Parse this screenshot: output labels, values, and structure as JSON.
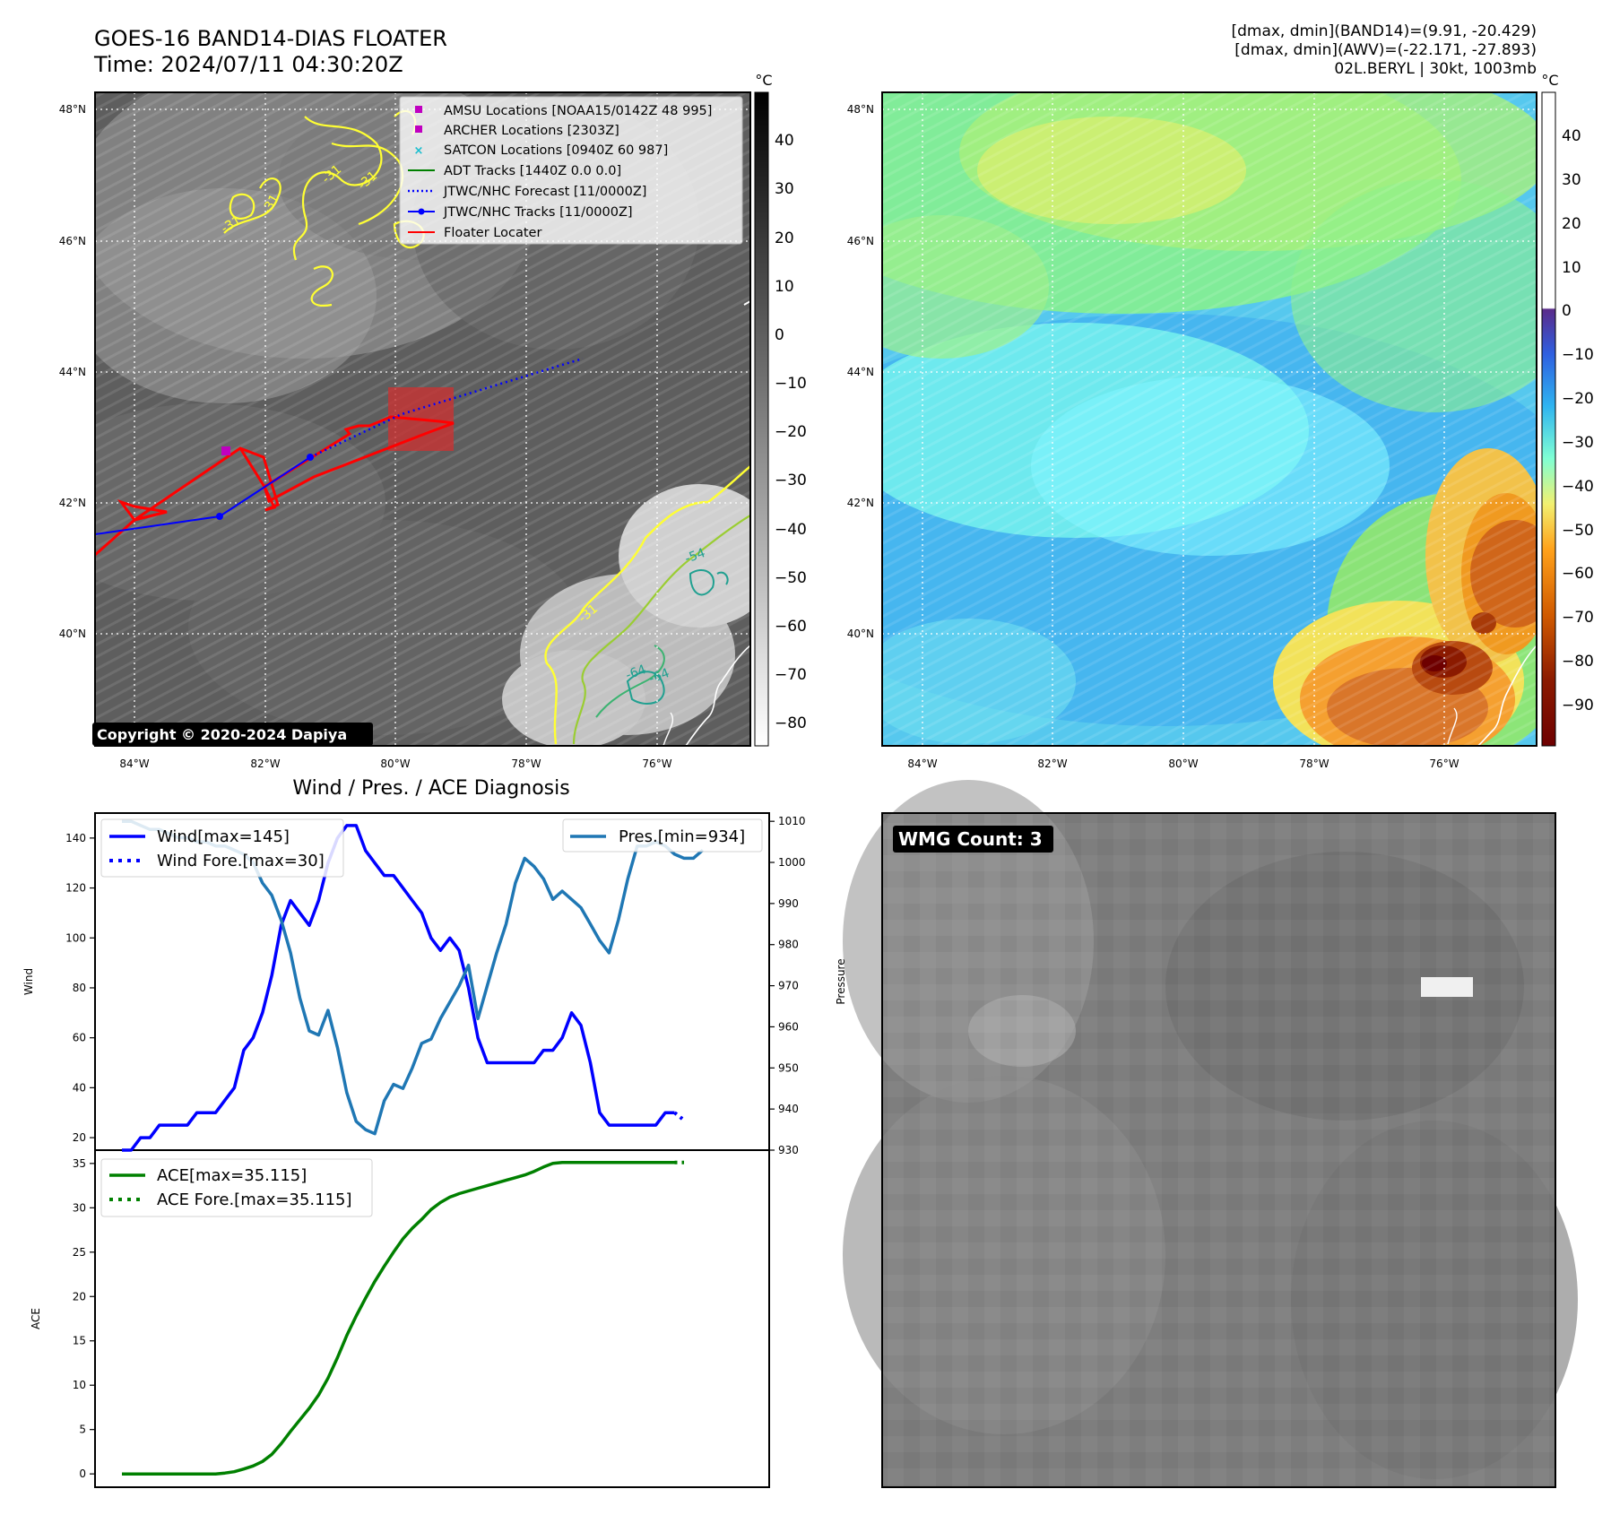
{
  "header": {
    "title_line1": "GOES-16 BAND14-DIAS FLOATER",
    "title_line2": "Time: 2024/07/11 04:30:20Z",
    "right_line1": "[dmax, dmin](BAND14)=(9.91, -20.429)",
    "right_line2": "[dmax, dmin](AWV)=(-22.171, -27.893)",
    "right_line3": "02L.BERYL | 30kt, 1003mb"
  },
  "map": {
    "lon_ticks": [
      "84°W",
      "82°W",
      "80°W",
      "78°W",
      "76°W"
    ],
    "lat_ticks": [
      "48°N",
      "46°N",
      "44°N",
      "42°N",
      "40°N"
    ],
    "copyright": "Copyright © 2020-2024 Dapiya",
    "contour_labels": [
      "-31",
      "-31",
      "-31",
      "-31",
      "-54",
      "-64",
      "-31",
      "-64"
    ],
    "legend": [
      {
        "label": "AMSU Locations [NOAA15/0142Z 48 995]",
        "color": "#c000c0",
        "kind": "square"
      },
      {
        "label": "ARCHER Locations [2303Z]",
        "color": "#c000c0",
        "kind": "square"
      },
      {
        "label": "SATCON Locations [0940Z 60 987]",
        "color": "#17becf",
        "kind": "x"
      },
      {
        "label": "ADT Tracks [1440Z 0.0 0.0]",
        "color": "#008000",
        "kind": "line"
      },
      {
        "label": "JTWC/NHC Forecast [11/0000Z]",
        "color": "#0000ff",
        "kind": "dotted"
      },
      {
        "label": "JTWC/NHC Tracks [11/0000Z]",
        "color": "#0000ff",
        "kind": "line-dot"
      },
      {
        "label": "Floater Locater",
        "color": "#ff0000",
        "kind": "line"
      }
    ]
  },
  "colorbar_left": {
    "unit": "°C",
    "ticks": [
      "40",
      "30",
      "20",
      "10",
      "0",
      "−10",
      "−20",
      "−30",
      "−40",
      "−50",
      "−60",
      "−70",
      "−80"
    ]
  },
  "colorbar_right": {
    "unit": "°C",
    "ticks": [
      "40",
      "30",
      "20",
      "10",
      "0",
      "−10",
      "−20",
      "−30",
      "−40",
      "−50",
      "−60",
      "−70",
      "−80",
      "−90"
    ]
  },
  "wmg": {
    "label": "WMG Count: 3"
  },
  "chart_data": [
    {
      "type": "line",
      "title": "Wind / Pres. / ACE Diagnosis",
      "ylabel": "Wind",
      "y2label": "Pressure",
      "ylim": [
        15,
        150
      ],
      "y2lim": [
        930,
        1012
      ],
      "yticks": [
        "140",
        "120",
        "100",
        "80",
        "60",
        "40",
        "20"
      ],
      "y2ticks": [
        "1010",
        "1000",
        "990",
        "980",
        "970",
        "960",
        "950",
        "940",
        "930"
      ],
      "series": [
        {
          "name": "Wind[max=145]",
          "color": "#0000ff",
          "axis": "left",
          "values": [
            15,
            15,
            20,
            20,
            25,
            25,
            25,
            25,
            30,
            30,
            30,
            35,
            40,
            55,
            60,
            70,
            85,
            105,
            115,
            110,
            105,
            115,
            130,
            140,
            145,
            145,
            135,
            130,
            125,
            125,
            120,
            115,
            110,
            100,
            95,
            100,
            95,
            80,
            60,
            50,
            50,
            50,
            50,
            50,
            50,
            55,
            55,
            60,
            70,
            65,
            50,
            30,
            25,
            25,
            25,
            25,
            25,
            25,
            30,
            30
          ]
        },
        {
          "name": "Wind Fore.[max=30]",
          "color": "#0000ff",
          "axis": "left",
          "dotted": true,
          "x_start": 59,
          "values": [
            30,
            27
          ]
        },
        {
          "name": "Pres.[min=934]",
          "color": "#1f77b4",
          "axis": "right",
          "values": [
            1010,
            1010,
            1009,
            1008,
            1008,
            1007,
            1006,
            1006,
            1005,
            1005,
            1004,
            1004,
            1003,
            1002,
            1000,
            995,
            992,
            986,
            978,
            967,
            959,
            958,
            964,
            955,
            944,
            937,
            935,
            934,
            942,
            946,
            945,
            950,
            956,
            957,
            962,
            966,
            970,
            975,
            962,
            970,
            978,
            985,
            995,
            1001,
            999,
            996,
            991,
            993,
            991,
            989,
            985,
            981,
            978,
            986,
            996,
            1004,
            1004,
            1005,
            1004,
            1002,
            1001,
            1001,
            1003
          ]
        }
      ]
    },
    {
      "type": "line",
      "ylabel": "ACE",
      "ylim": [
        -1.5,
        36.5
      ],
      "yticks": [
        "35",
        "30",
        "25",
        "20",
        "15",
        "10",
        "5",
        "0"
      ],
      "series": [
        {
          "name": "ACE[max=35.115]",
          "color": "#008000",
          "values": [
            0,
            0,
            0,
            0,
            0,
            0,
            0,
            0,
            0,
            0,
            0,
            0.1,
            0.25,
            0.55,
            0.9,
            1.4,
            2.2,
            3.4,
            4.8,
            6.1,
            7.4,
            8.9,
            10.8,
            13.1,
            15.6,
            17.8,
            19.8,
            21.7,
            23.4,
            25.0,
            26.5,
            27.7,
            28.7,
            29.8,
            30.6,
            31.2,
            31.6,
            31.9,
            32.2,
            32.5,
            32.8,
            33.1,
            33.4,
            33.7,
            34.1,
            34.6,
            35.0,
            35.115,
            35.115,
            35.115,
            35.115,
            35.115,
            35.115,
            35.115,
            35.115,
            35.115,
            35.115,
            35.115,
            35.115,
            35.115
          ]
        },
        {
          "name": "ACE Fore.[max=35.115]",
          "color": "#008000",
          "dotted": true,
          "x_start": 59,
          "values": [
            35.115,
            35.115
          ]
        }
      ]
    }
  ]
}
